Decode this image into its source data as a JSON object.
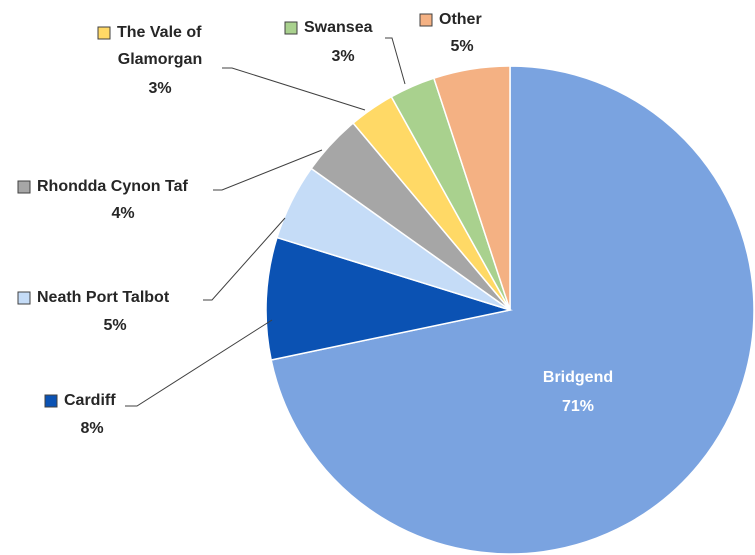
{
  "chart_data": {
    "type": "pie",
    "categories": [
      "Bridgend",
      "Cardiff",
      "Neath Port Talbot",
      "Rhondda Cynon Taf",
      "The Vale of Glamorgan",
      "Swansea",
      "Other"
    ],
    "values": [
      71,
      8,
      5,
      4,
      3,
      3,
      5
    ],
    "value_labels": [
      "71%",
      "8%",
      "5%",
      "4%",
      "3%",
      "3%",
      "5%"
    ],
    "colors": [
      "#7aa3e0",
      "#0b52b3",
      "#c5dcf7",
      "#a6a6a6",
      "#ffd966",
      "#a9d18e",
      "#f4b183"
    ]
  }
}
